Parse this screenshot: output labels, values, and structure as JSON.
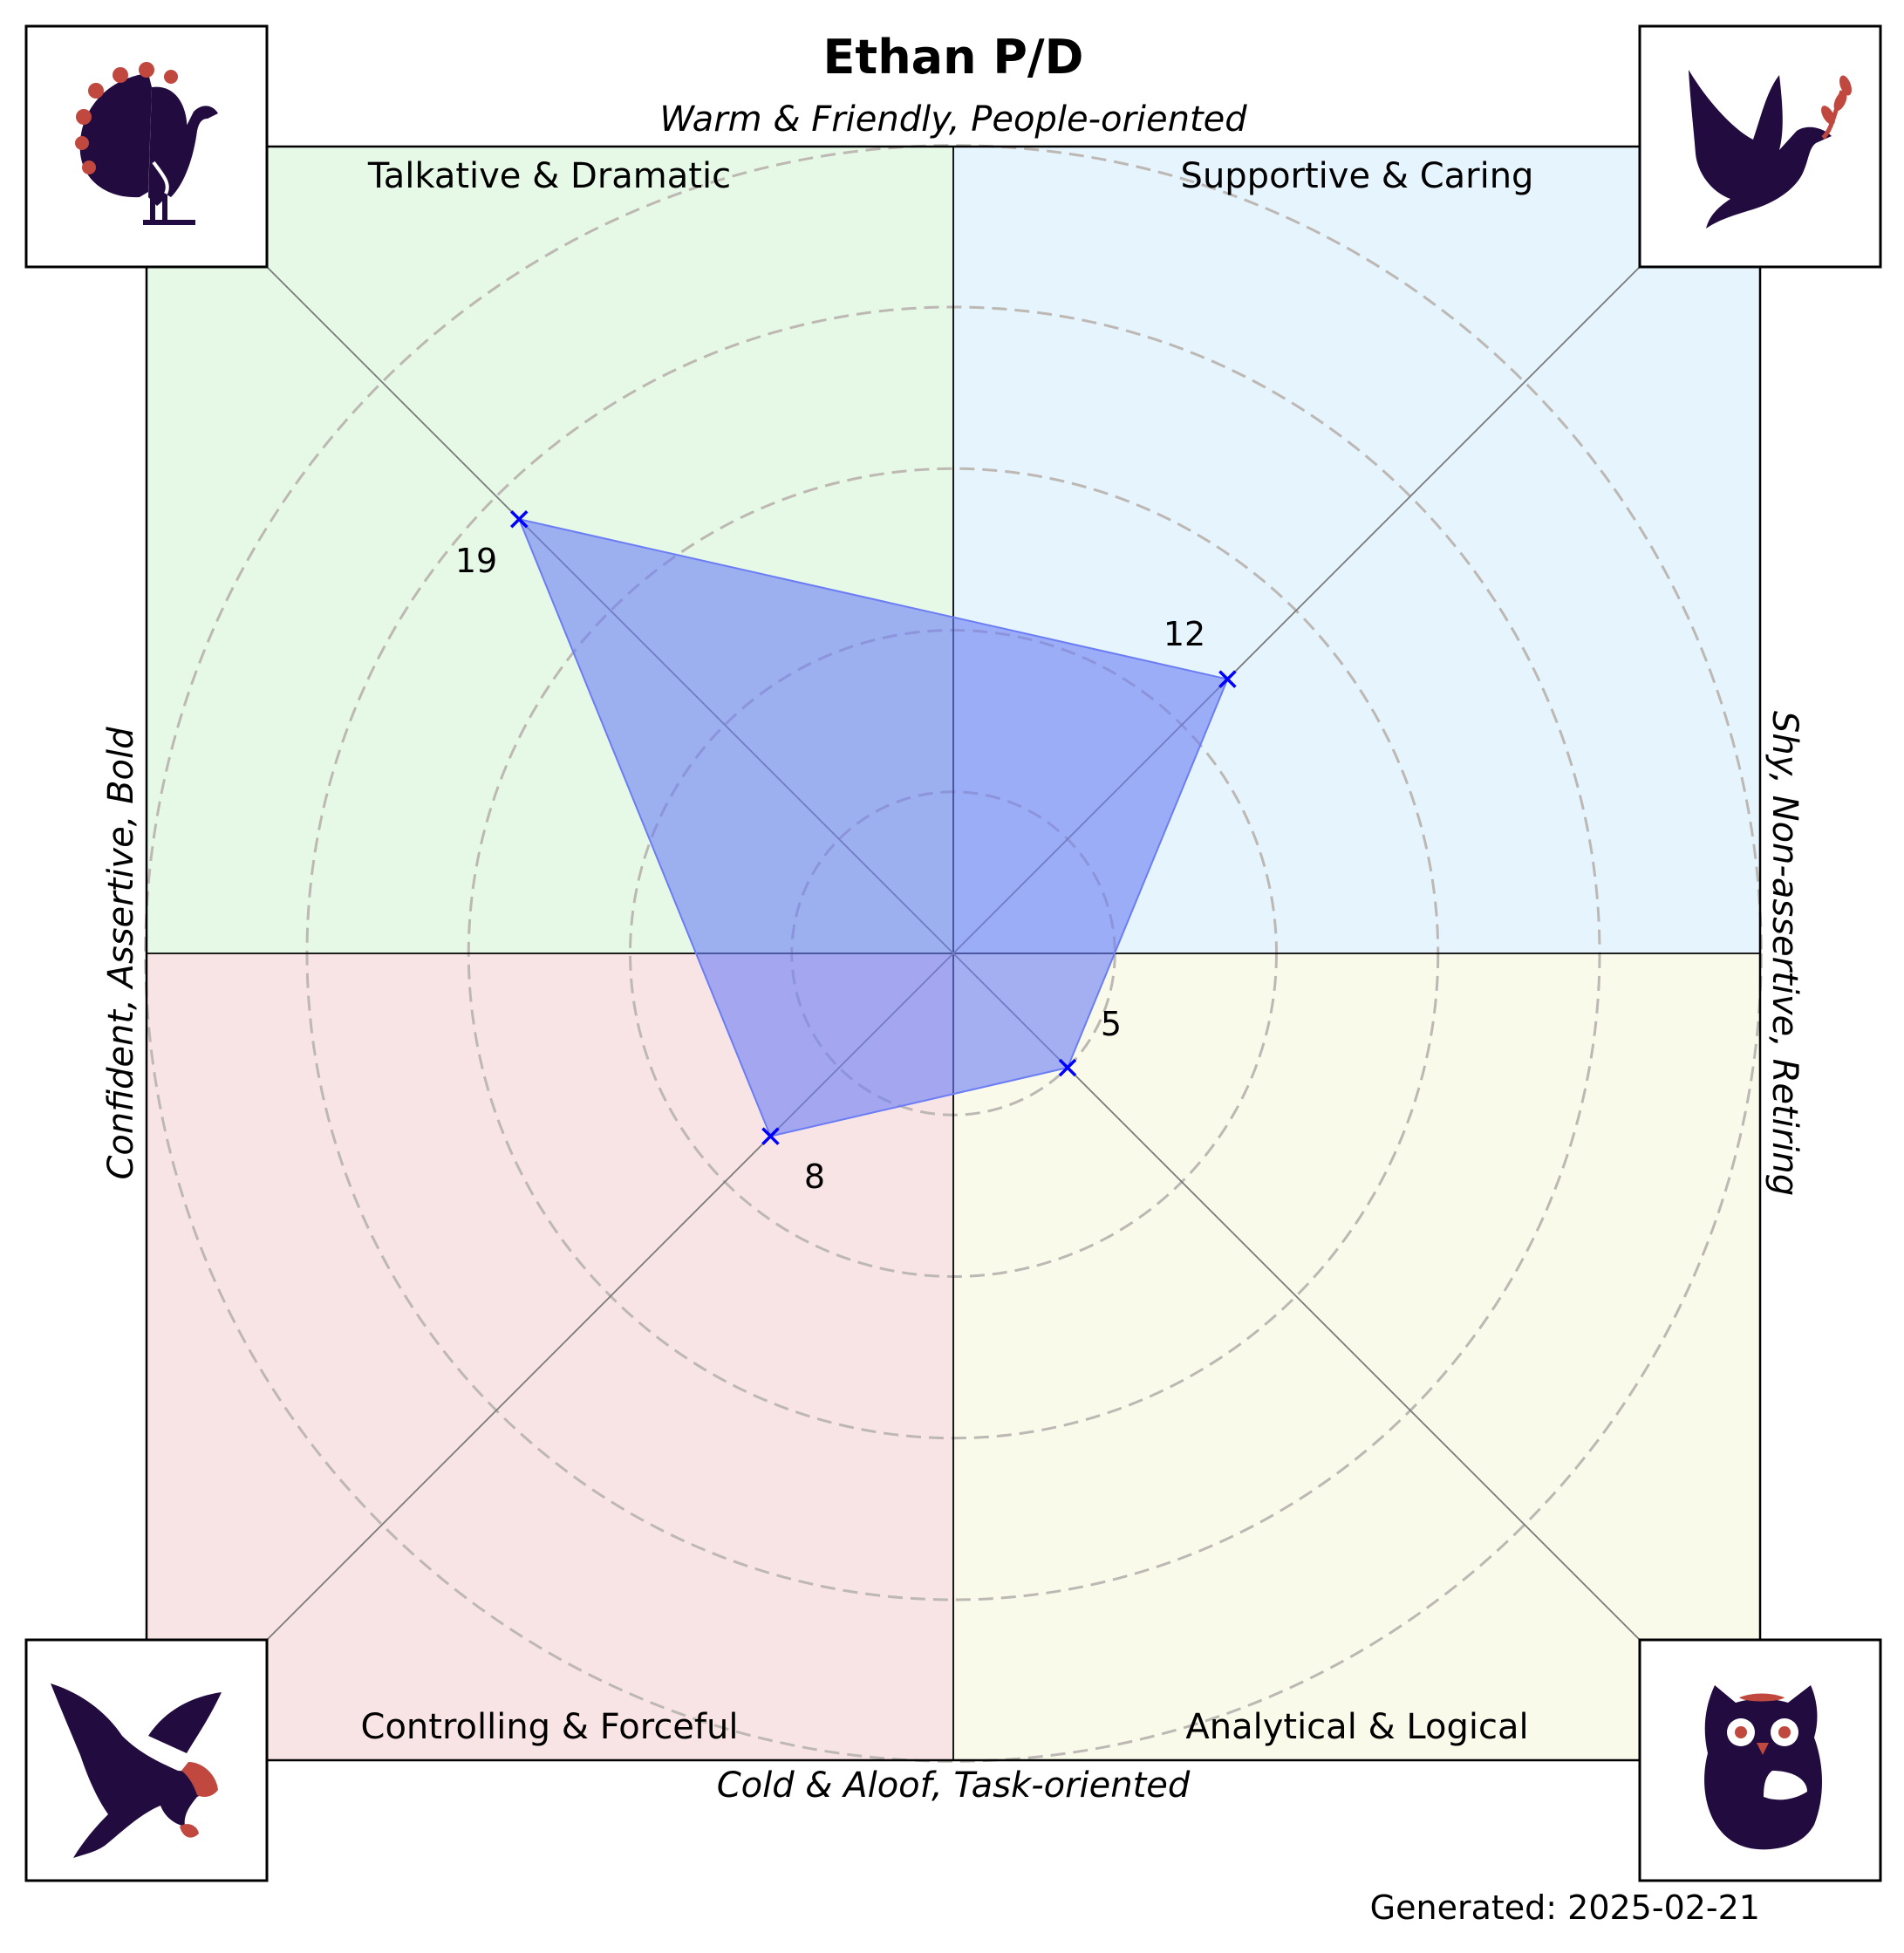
{
  "chart_data": {
    "type": "radar",
    "title": "Ethan P/D",
    "axis_labels": {
      "top": "Warm & Friendly, People-oriented",
      "bottom": "Cold & Aloof, Task-oriented",
      "left": "Confident, Assertive, Bold",
      "right": "Shy, Non-assertive, Retiring"
    },
    "quadrants": [
      {
        "label": "Talkative & Dramatic",
        "direction": "top-left",
        "color": "#e6f9e6",
        "icon": "peacock-icon"
      },
      {
        "label": "Supportive & Caring",
        "direction": "top-right",
        "color": "#e5f4fd",
        "icon": "dove-icon"
      },
      {
        "label": "Controlling & Forceful",
        "direction": "bottom-left",
        "color": "#f9e4e5",
        "icon": "eagle-icon"
      },
      {
        "label": "Analytical & Logical",
        "direction": "bottom-right",
        "color": "#fafaeb",
        "icon": "owl-icon"
      }
    ],
    "series": [
      {
        "values": [
          19,
          12,
          5,
          8
        ],
        "color": "#0000ff",
        "fill": "#6b7df5"
      }
    ],
    "value_labels": [
      "19",
      "12",
      "5",
      "8"
    ],
    "rlim": [
      0,
      25
    ],
    "ring_values": [
      5,
      10,
      15,
      20,
      25
    ],
    "grid": true
  },
  "footer": {
    "generated": "Generated: 2025-02-21"
  }
}
